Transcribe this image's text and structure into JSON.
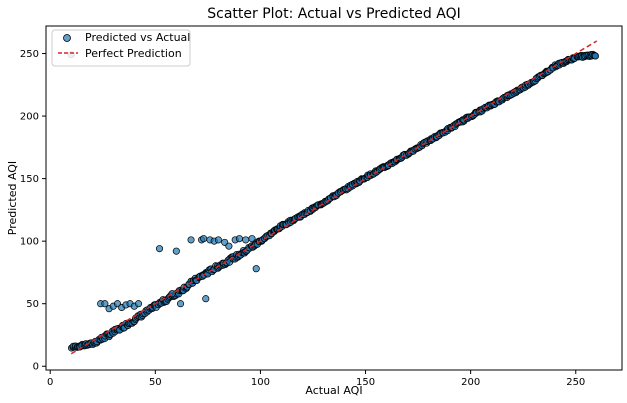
{
  "chart_data": {
    "type": "scatter",
    "title": "Scatter Plot: Actual vs Predicted AQI",
    "xlabel": "Actual AQI",
    "ylabel": "Predicted AQI",
    "xlim": [
      -2,
      272
    ],
    "ylim": [
      -3,
      272
    ],
    "xticks": [
      0,
      50,
      100,
      150,
      200,
      250
    ],
    "yticks": [
      0,
      50,
      100,
      150,
      200,
      250
    ],
    "grid": false,
    "legend_position": "top-left",
    "series": [
      {
        "name": "Predicted vs Actual",
        "kind": "scatter",
        "color": "#1f77b4",
        "edgecolor": "#000000",
        "main_band": {
          "x_range": [
            10,
            260
          ],
          "description_points": [
            [
              10,
              15
            ],
            [
              20,
              18
            ],
            [
              30,
              27
            ],
            [
              40,
              37
            ],
            [
              50,
              48
            ],
            [
              60,
              58
            ],
            [
              70,
              70
            ],
            [
              80,
              80
            ],
            [
              90,
              89
            ],
            [
              100,
              100
            ],
            [
              110,
              112
            ],
            [
              120,
              121
            ],
            [
              130,
              131
            ],
            [
              140,
              141
            ],
            [
              150,
              151
            ],
            [
              160,
              160
            ],
            [
              170,
              170
            ],
            [
              180,
              180
            ],
            [
              190,
              190
            ],
            [
              200,
              200
            ],
            [
              210,
              209
            ],
            [
              220,
              218
            ],
            [
              230,
              228
            ],
            [
              240,
              240
            ],
            [
              250,
              247
            ],
            [
              260,
              249
            ]
          ]
        },
        "outliers": [
          [
            52,
            94
          ],
          [
            60,
            92
          ],
          [
            67,
            101
          ],
          [
            72,
            101
          ],
          [
            73,
            102
          ],
          [
            76,
            101
          ],
          [
            78,
            100
          ],
          [
            80,
            101
          ],
          [
            83,
            99
          ],
          [
            85,
            96
          ],
          [
            88,
            101
          ],
          [
            90,
            102
          ],
          [
            93,
            101
          ],
          [
            96,
            102
          ],
          [
            98,
            78
          ],
          [
            24,
            50
          ],
          [
            26,
            50
          ],
          [
            28,
            46
          ],
          [
            30,
            48
          ],
          [
            32,
            50
          ],
          [
            34,
            47
          ],
          [
            36,
            49
          ],
          [
            38,
            50
          ],
          [
            40,
            48
          ],
          [
            42,
            50
          ],
          [
            74,
            54
          ],
          [
            62,
            50
          ],
          [
            58,
            58
          ]
        ]
      },
      {
        "name": "Perfect Prediction",
        "kind": "line",
        "style": "dashed",
        "color": "#d62728",
        "x": [
          10,
          260
        ],
        "y": [
          10,
          260
        ]
      }
    ]
  }
}
